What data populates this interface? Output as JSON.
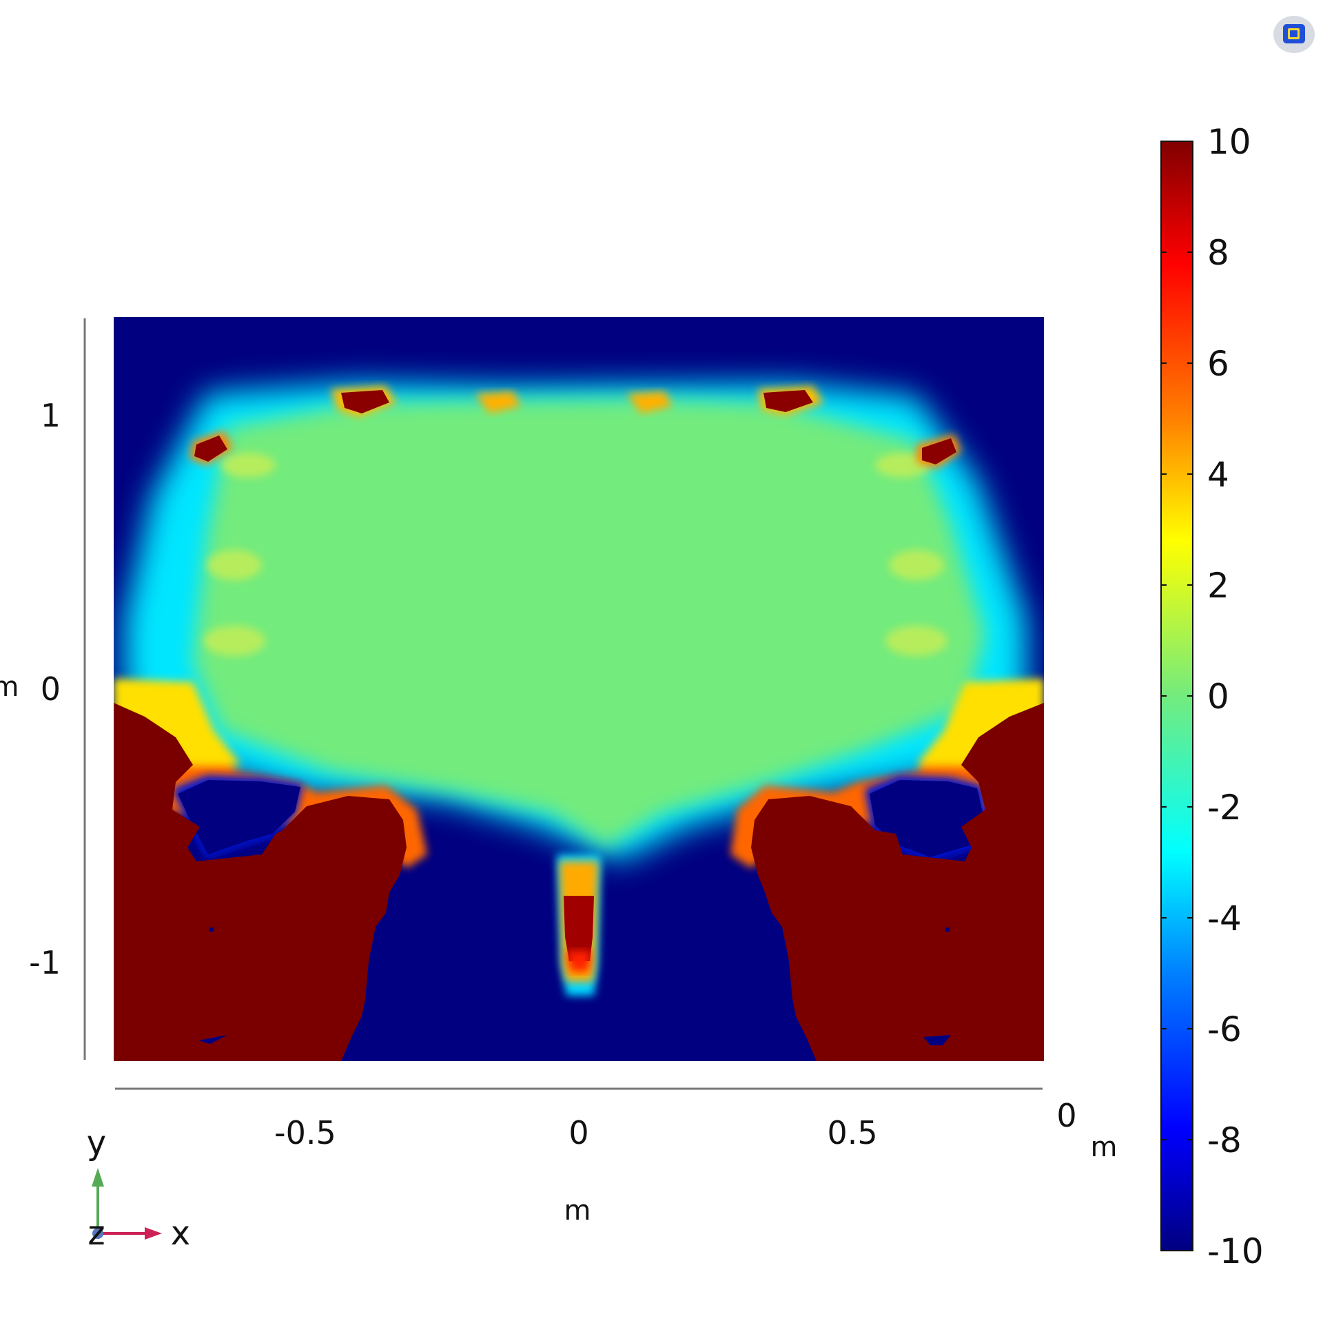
{
  "chart_data": {
    "type": "heatmap",
    "colormap": "rainbow (jet)",
    "grid": false,
    "x_axis": {
      "ticks": [
        -0.5,
        0,
        0.5
      ],
      "tick_labels": [
        "-0.5",
        "0",
        "0.5"
      ],
      "range": [
        -0.85,
        0.85
      ],
      "unit": "m",
      "edge_tick_label": "0",
      "edge_unit": "m"
    },
    "y_axis": {
      "ticks": [
        1,
        0,
        -1
      ],
      "tick_labels": [
        "1",
        "0",
        "-1"
      ],
      "range": [
        -1.36,
        1.36
      ],
      "unit": "m"
    },
    "colorbar": {
      "min": -10,
      "max": 10,
      "ticks": [
        10,
        8,
        6,
        4,
        2,
        0,
        -2,
        -4,
        -6,
        -8,
        -10
      ],
      "tick_labels": [
        "10",
        "8",
        "6",
        "4",
        "2",
        "0",
        "-2",
        "-4",
        "-6",
        "-8",
        "-10"
      ],
      "colors": [
        "#000080",
        "#0000ff",
        "#0080ff",
        "#00ffff",
        "#73eb7d",
        "#ffff00",
        "#ff8000",
        "#ff0000",
        "#800000"
      ]
    },
    "field_regions": [
      {
        "label": "interior",
        "value": 0
      },
      {
        "label": "background",
        "value": -10
      },
      {
        "label": "lower-side-blocks",
        "value": 10
      },
      {
        "label": "center-spike",
        "value": 8
      }
    ]
  },
  "axes_triad": {
    "y": "y",
    "z": "z",
    "x": "x"
  },
  "icons": {
    "toolbar": "graphics-window-icon"
  },
  "colors": {
    "axis": "#777777",
    "triad_x": "#cc2255",
    "triad_y": "#55aa55"
  }
}
